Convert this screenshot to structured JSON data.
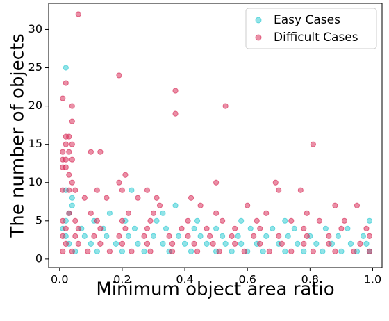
{
  "chart_data": {
    "type": "scatter",
    "xlabel": "Minimum object area ratio",
    "ylabel": "The number of objects",
    "xlim": [
      -0.035,
      1.03
    ],
    "ylim": [
      -1.1,
      33.4
    ],
    "xticks": [
      {
        "value": 0,
        "label": "0.0"
      },
      0.2,
      0.4,
      0.6,
      0.8,
      {
        "value": 1,
        "label": "1.0"
      }
    ],
    "yticks": [
      0,
      5,
      10,
      15,
      20,
      25,
      30
    ],
    "legend": "upper right",
    "series": [
      {
        "name": "Easy Cases",
        "color": "#22c7d0",
        "x": [
          0.05,
          0.12,
          0.2,
          0.27,
          0.35,
          0.42,
          0.5,
          0.55,
          0.6,
          0.65,
          0.72,
          0.78,
          0.84,
          0.9,
          0.95,
          0.99,
          0.03,
          0.1,
          0.18,
          0.25,
          0.33,
          0.4,
          0.47,
          0.53,
          0.58,
          0.63,
          0.7,
          0.76,
          0.82,
          0.87,
          0.93,
          0.98,
          0.02,
          0.08,
          0.15,
          0.22,
          0.3,
          0.38,
          0.45,
          0.52,
          0.57,
          0.66,
          0.73,
          0.8,
          0.89,
          0.97,
          0.01,
          0.07,
          0.14,
          0.24,
          0.34,
          0.43,
          0.5,
          0.61,
          0.68,
          0.75,
          0.85,
          0.92,
          0.02,
          0.11,
          0.21,
          0.31,
          0.44,
          0.58,
          0.72,
          0.99,
          0.03,
          0.16,
          0.33,
          0.04,
          0.37,
          0.04,
          0.02,
          0.23,
          0.02
        ],
        "values": [
          1,
          1,
          1,
          1,
          1,
          1,
          1,
          1,
          1,
          1,
          1,
          1,
          1,
          1,
          1,
          1,
          2,
          2,
          2,
          2,
          2,
          2,
          2,
          2,
          2,
          2,
          2,
          2,
          2,
          2,
          2,
          2,
          3,
          3,
          3,
          3,
          3,
          3,
          3,
          3,
          3,
          3,
          3,
          3,
          3,
          3,
          4,
          4,
          4,
          4,
          4,
          4,
          4,
          4,
          4,
          4,
          4,
          4,
          5,
          5,
          5,
          5,
          5,
          5,
          5,
          5,
          6,
          6,
          6,
          7,
          7,
          8,
          9,
          9,
          25
        ]
      },
      {
        "name": "Difficult Cases",
        "color": "#d6204e",
        "x": [
          0.01,
          0.04,
          0.09,
          0.16,
          0.23,
          0.29,
          0.36,
          0.44,
          0.51,
          0.59,
          0.67,
          0.74,
          0.81,
          0.88,
          0.94,
          0.99,
          0.02,
          0.06,
          0.13,
          0.2,
          0.28,
          0.36,
          0.43,
          0.49,
          0.56,
          0.64,
          0.71,
          0.78,
          0.86,
          0.96,
          0.01,
          0.05,
          0.11,
          0.19,
          0.27,
          0.35,
          0.41,
          0.48,
          0.55,
          0.62,
          0.7,
          0.79,
          0.86,
          0.99,
          0.02,
          0.06,
          0.13,
          0.21,
          0.28,
          0.39,
          0.47,
          0.56,
          0.64,
          0.78,
          0.9,
          0.98,
          0.01,
          0.05,
          0.12,
          0.2,
          0.29,
          0.41,
          0.52,
          0.63,
          0.74,
          0.83,
          0.91,
          0.79,
          0.22,
          0.1,
          0.3,
          0.5,
          0.66,
          0.03,
          0.32,
          0.45,
          0.88,
          0.95,
          0.6,
          0.25,
          0.31,
          0.42,
          0.08,
          0.15,
          0.7,
          0.77,
          0.2,
          0.12,
          0.28,
          0.01,
          0.03,
          0.05,
          0.19,
          0.5,
          0.69,
          0.04,
          0.21,
          0.03,
          0.01,
          0.02,
          0.01,
          0.02,
          0.04,
          0.01,
          0.03,
          0.1,
          0.13,
          0.81,
          0.02,
          0.04,
          0.02,
          0.03,
          0.04,
          0.37,
          0.04,
          0.53,
          0.01,
          0.37,
          0.02,
          0.19,
          0.06
        ],
        "values": [
          1,
          1,
          1,
          1,
          1,
          1,
          1,
          1,
          1,
          1,
          1,
          1,
          1,
          1,
          1,
          1,
          2,
          2,
          2,
          2,
          2,
          2,
          2,
          2,
          2,
          2,
          2,
          2,
          2,
          2,
          3,
          3,
          3,
          3,
          3,
          3,
          3,
          3,
          3,
          3,
          3,
          3,
          3,
          3,
          4,
          4,
          4,
          4,
          4,
          4,
          4,
          4,
          4,
          4,
          4,
          4,
          5,
          5,
          5,
          5,
          5,
          5,
          5,
          5,
          5,
          5,
          5,
          6,
          6,
          6,
          6,
          6,
          6,
          6,
          7,
          7,
          7,
          7,
          7,
          8,
          8,
          8,
          8,
          8,
          9,
          9,
          9,
          9,
          9,
          9,
          9,
          9,
          10,
          10,
          10,
          10,
          11,
          11,
          12,
          12,
          13,
          13,
          13,
          14,
          14,
          14,
          14,
          15,
          15,
          15,
          16,
          16,
          18,
          19,
          20,
          20,
          21,
          22,
          23,
          24,
          32
        ]
      }
    ]
  }
}
